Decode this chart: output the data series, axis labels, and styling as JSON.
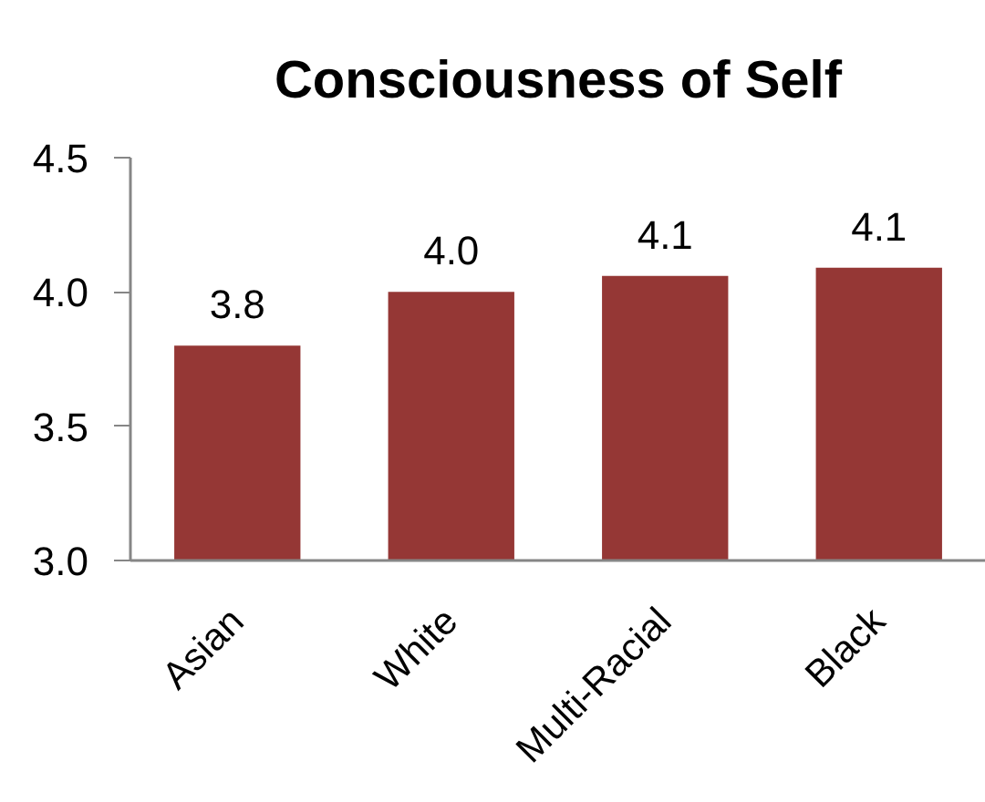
{
  "chart_data": {
    "type": "bar",
    "title": "Consciousness of Self",
    "categories": [
      "Asian",
      "White",
      "Multi-Racial",
      "Black"
    ],
    "values": [
      3.8,
      4.0,
      4.06,
      4.09
    ],
    "value_labels": [
      "3.8",
      "4.0",
      "4.1",
      "4.1"
    ],
    "color": "#953735",
    "ylim": [
      3.0,
      4.5
    ],
    "yticks": [
      {
        "value": 3,
        "label": "3.0"
      },
      3.5,
      {
        "value": 4,
        "label": "4.0"
      },
      4.5
    ]
  }
}
